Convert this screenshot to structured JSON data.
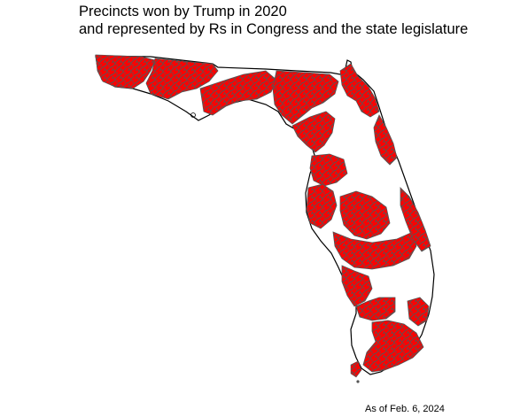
{
  "title": {
    "line1": "Precincts won by Trump in 2020",
    "line2": "and represented by Rs in Congress and the state legislature"
  },
  "caption": "As of Feb. 6, 2024",
  "map": {
    "region": "Florida",
    "colors": {
      "state_outline": "#000000",
      "highlighted_fill": "#ff0000",
      "precinct_border": "#555555",
      "background": "#ffffff"
    }
  }
}
